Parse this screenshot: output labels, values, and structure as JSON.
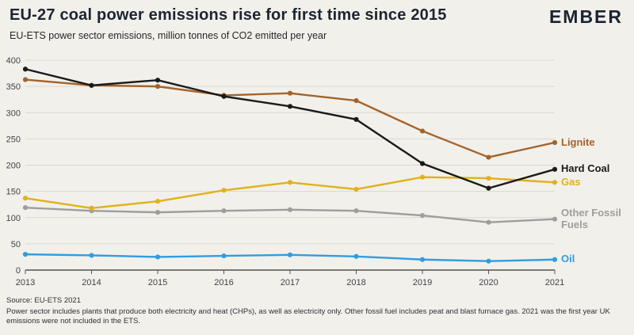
{
  "header": {
    "title": "EU-27 coal power emissions rise for first time since 2015",
    "subtitle": "EU-ETS power sector emissions, million tonnes of CO2 emitted per year",
    "logo": "EMBER"
  },
  "chart_data": {
    "type": "line",
    "x": [
      2013,
      2014,
      2015,
      2016,
      2017,
      2018,
      2019,
      2020,
      2021
    ],
    "xlabel": "",
    "ylabel": "million tonnes of CO2 emitted per year",
    "ylim": [
      0,
      400
    ],
    "ytick_step": 50,
    "grid": "horizontal",
    "legend_position": "right-edge-labels",
    "marker": "dot",
    "series": [
      {
        "name": "Lignite",
        "color": "#a3632b",
        "values": [
          363,
          352,
          350,
          333,
          337,
          323,
          265,
          215,
          243
        ]
      },
      {
        "name": "Hard Coal",
        "color": "#1a1a1a",
        "values": [
          383,
          352,
          362,
          331,
          312,
          287,
          203,
          156,
          192
        ]
      },
      {
        "name": "Gas",
        "color": "#e0b11c",
        "values": [
          137,
          118,
          131,
          152,
          167,
          154,
          177,
          175,
          167
        ]
      },
      {
        "name": "Other Fossil Fuels",
        "color": "#9e9e9e",
        "values": [
          119,
          113,
          110,
          113,
          115,
          113,
          104,
          91,
          97
        ]
      },
      {
        "name": "Oil",
        "color": "#2f9de0",
        "values": [
          30,
          28,
          25,
          27,
          29,
          26,
          20,
          17,
          20
        ]
      }
    ]
  },
  "footer": {
    "source": "Source: EU-ETS 2021",
    "note": "Power sector includes plants that produce both electricity and heat (CHPs), as well as electricity only. Other fossil fuel includes peat and blast furnace gas. 2021 was the first year UK emissions were not included in the ETS."
  }
}
